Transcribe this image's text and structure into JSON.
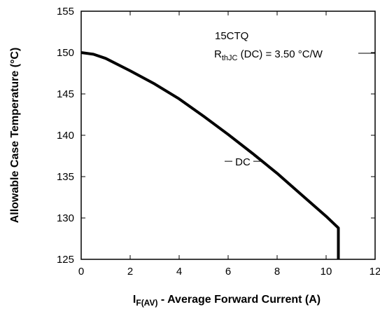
{
  "chart_data": {
    "type": "line",
    "title": "",
    "xlabel": {
      "main": "I",
      "sub": "F(AV)",
      "rest": " - Average Forward Current (A)"
    },
    "ylabel": "Allowable Case Temperature (°C)",
    "xlim": [
      0,
      12
    ],
    "ylim": [
      125,
      155
    ],
    "xticks": [
      "0",
      "2",
      "4",
      "6",
      "8",
      "10",
      "12"
    ],
    "yticks": [
      "125",
      "130",
      "135",
      "140",
      "145",
      "150",
      "155"
    ],
    "grid": false,
    "annotation": {
      "device": "15CTQ",
      "rth_main": "R",
      "rth_sub": "thJC",
      "rth_rest": " (DC) = 3.50 °C/W"
    },
    "series": [
      {
        "name": "DC",
        "x": [
          0,
          0.5,
          1,
          2,
          3,
          4,
          5,
          6,
          7,
          8,
          9,
          10,
          10.5,
          10.5
        ],
        "y": [
          150,
          149.8,
          149.3,
          147.8,
          146.2,
          144.4,
          142.3,
          140.1,
          137.8,
          135.4,
          132.8,
          130.2,
          128.8,
          125
        ]
      }
    ]
  }
}
